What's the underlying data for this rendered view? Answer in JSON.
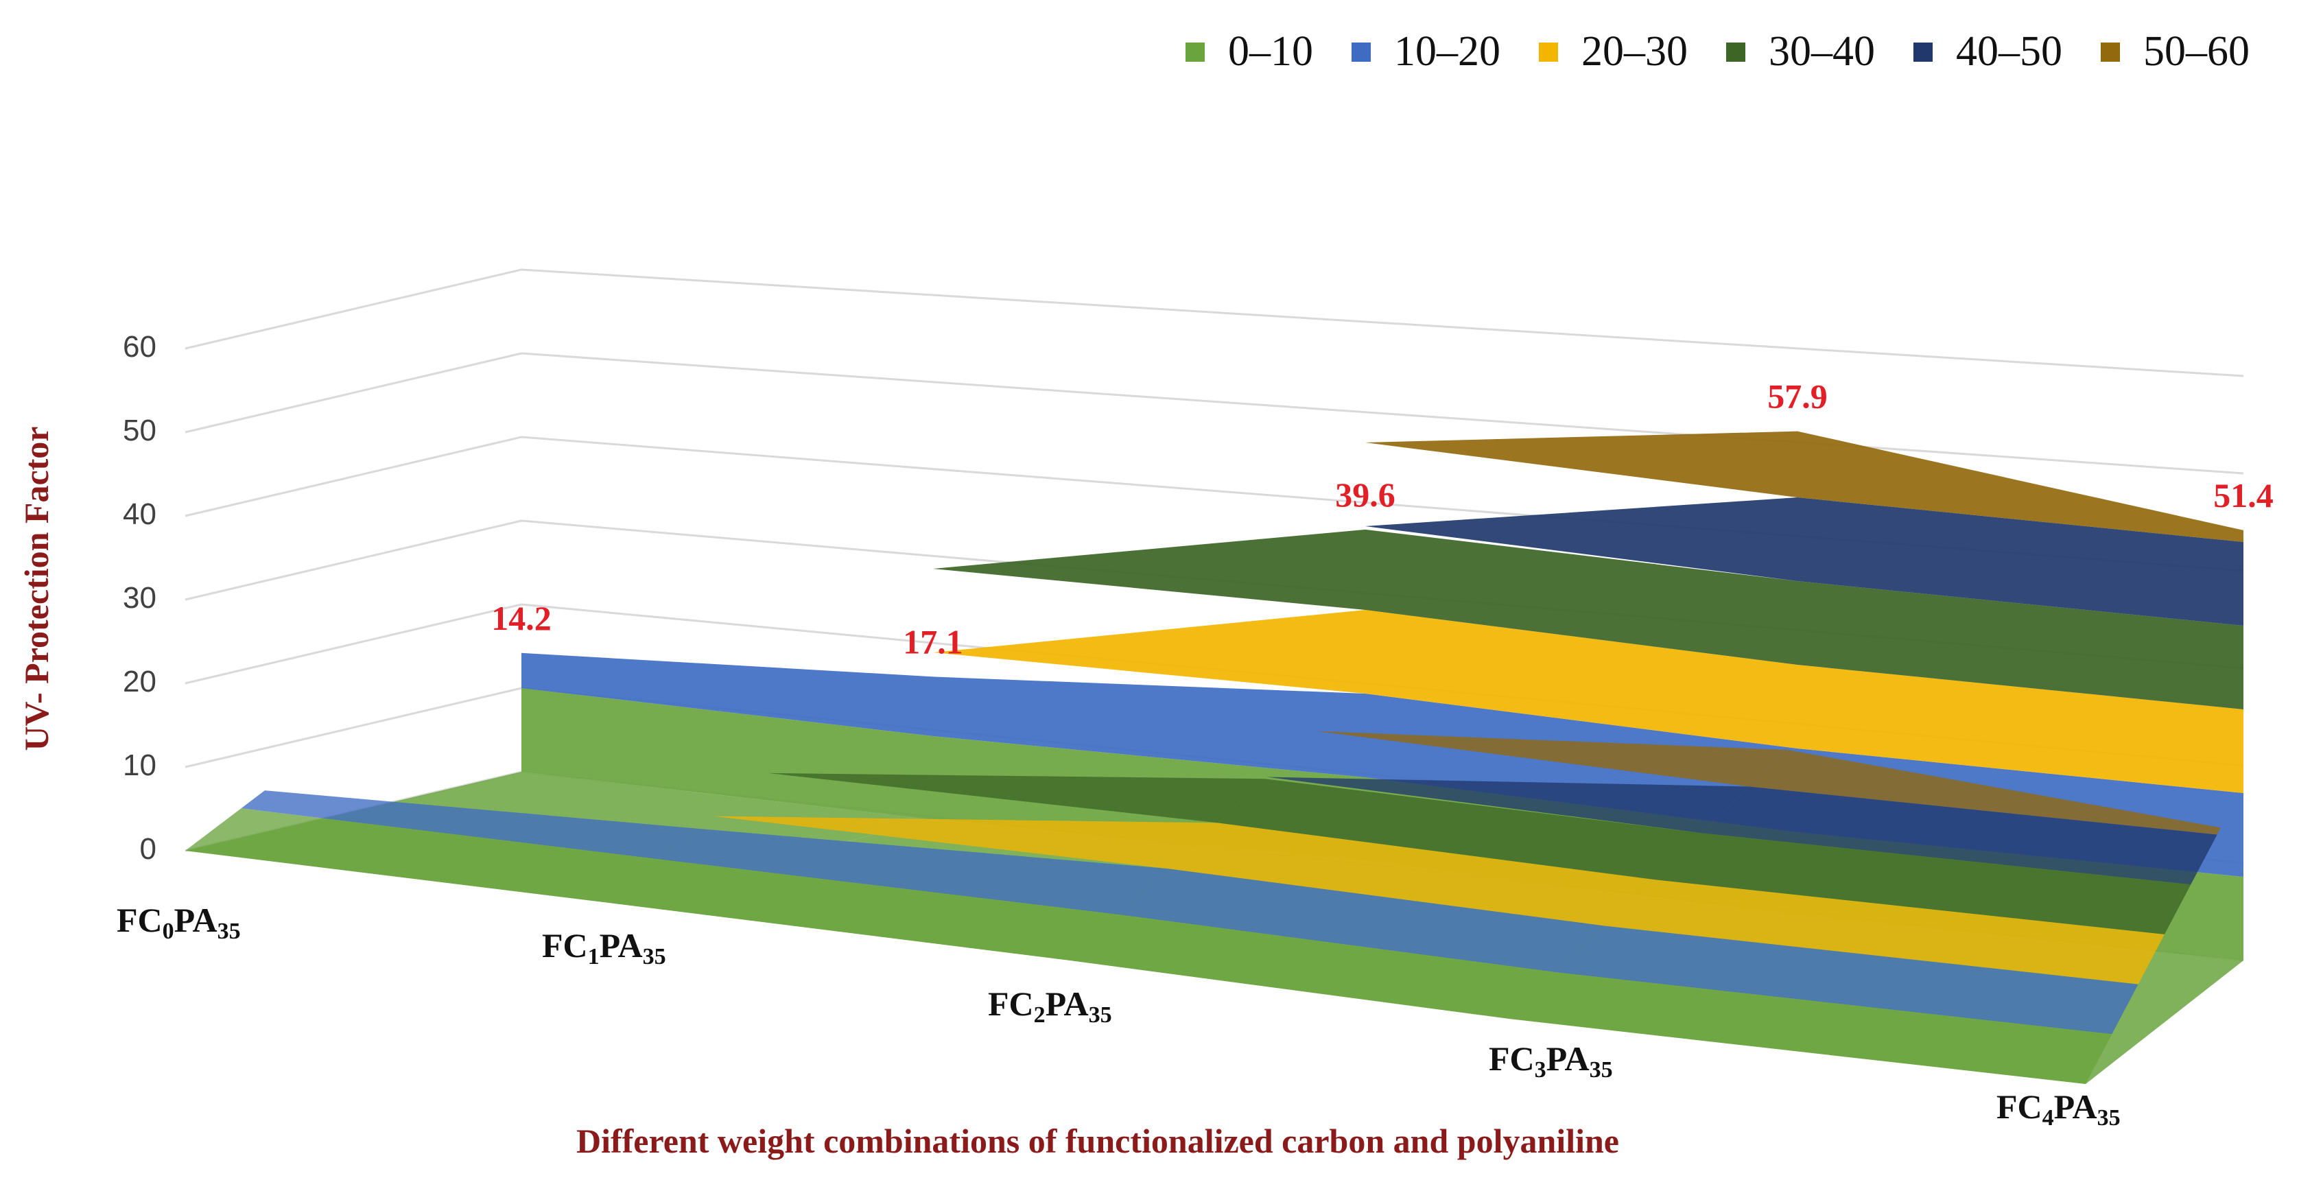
{
  "chart_data": {
    "type": "area",
    "chart_style": "3d-surface",
    "title": "",
    "xlabel": "Different weight combinations of functionalized carbon and polyaniline",
    "ylabel": "UV- Protection Factor",
    "ylim": [
      0,
      60
    ],
    "y_ticks": [
      "0",
      "10",
      "20",
      "30",
      "40",
      "50",
      "60"
    ],
    "categories": [
      {
        "base": "FC",
        "sub1": "0",
        "mid": "PA",
        "sub2": "35"
      },
      {
        "base": "FC",
        "sub1": "1",
        "mid": "PA",
        "sub2": "35"
      },
      {
        "base": "FC",
        "sub1": "2",
        "mid": "PA",
        "sub2": "35"
      },
      {
        "base": "FC",
        "sub1": "3",
        "mid": "PA",
        "sub2": "35"
      },
      {
        "base": "FC",
        "sub1": "4",
        "mid": "PA",
        "sub2": "35"
      }
    ],
    "values": [
      14.2,
      17.1,
      39.6,
      57.9,
      51.4
    ],
    "data_labels": [
      "14.2",
      "17.1",
      "39.6",
      "57.9",
      "51.4"
    ],
    "legend": [
      {
        "label": "0–10",
        "color": "#6aa43f"
      },
      {
        "label": "10–20",
        "color": "#3f6cc3"
      },
      {
        "label": "20–30",
        "color": "#f3b500"
      },
      {
        "label": "30–40",
        "color": "#3c6526"
      },
      {
        "label": "40–50",
        "color": "#20386c"
      },
      {
        "label": "50–60",
        "color": "#93690d"
      }
    ],
    "legend_position": "top-right",
    "label_color": "#e21f26",
    "axis_title_color": "#8b1a1a"
  }
}
